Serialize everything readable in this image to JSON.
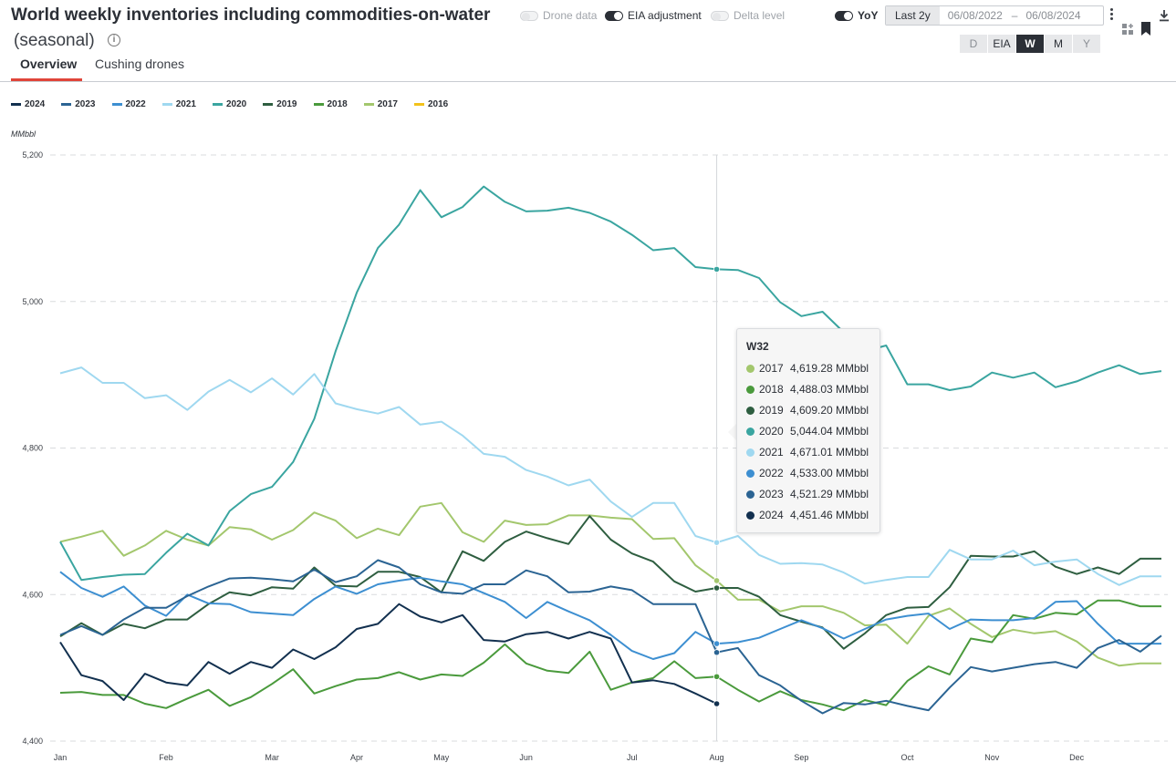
{
  "header": {
    "title": "World weekly inventories including commodities-on-water",
    "subtitle": "(seasonal)",
    "info": "i"
  },
  "tabs": [
    {
      "label": "Overview",
      "active": true
    },
    {
      "label": "Cushing drones",
      "active": false
    }
  ],
  "toggles": {
    "drone_data": {
      "label": "Drone data",
      "on": false
    },
    "eia_adjustment": {
      "label": "EIA adjustment",
      "on": true
    },
    "delta_level": {
      "label": "Delta level",
      "on": false
    },
    "yoy": {
      "label": "YoY",
      "on": true
    }
  },
  "date_range": {
    "preset": "Last 2y",
    "start": "06/08/2022",
    "end": "06/08/2024",
    "separator": "–"
  },
  "frequency": {
    "options": [
      "D",
      "EIA",
      "W",
      "M",
      "Y"
    ],
    "selected": "W"
  },
  "icons": {
    "download": "download-icon",
    "menu": "kebab-menu-icon",
    "grid": "add-widget-icon",
    "bookmark": "bookmark-icon"
  },
  "tooltip": {
    "title": "W32",
    "rows": [
      {
        "year": "2017",
        "value": "4,619.28 MMbbl",
        "color": "#a3c76d"
      },
      {
        "year": "2018",
        "value": "4,488.03 MMbbl",
        "color": "#4a9a3c"
      },
      {
        "year": "2019",
        "value": "4,609.20 MMbbl",
        "color": "#2e5e40"
      },
      {
        "year": "2020",
        "value": "5,044.04 MMbbl",
        "color": "#3aa5a0"
      },
      {
        "year": "2021",
        "value": "4,671.01 MMbbl",
        "color": "#9fd8f0"
      },
      {
        "year": "2022",
        "value": "4,533.00 MMbbl",
        "color": "#3d8fd1"
      },
      {
        "year": "2023",
        "value": "4,521.29 MMbbl",
        "color": "#2b6493"
      },
      {
        "year": "2024",
        "value": "4,451.46 MMbbl",
        "color": "#12304f"
      }
    ]
  },
  "chart_data": {
    "type": "line",
    "title": "World weekly inventories including commodities-on-water",
    "ylabel": "MMbbl",
    "xlabel": "",
    "ylim": [
      4400,
      5200
    ],
    "yticks": [
      4400,
      4600,
      4800,
      5000,
      5200
    ],
    "ytick_labels": [
      "4,400",
      "4,600",
      "4,800",
      "5,000",
      "5,200"
    ],
    "xlim": [
      1,
      53
    ],
    "month_labels": [
      "Jan",
      "Feb",
      "Mar",
      "Apr",
      "May",
      "Jun",
      "Jul",
      "Aug",
      "Sep",
      "Oct",
      "Nov",
      "Dec"
    ],
    "month_weeks": [
      1,
      6,
      11,
      15,
      19,
      23,
      28,
      32,
      36,
      41,
      45,
      49
    ],
    "crosshair_week": 32,
    "legend_position": "top-left",
    "grid": "horizontal dashed",
    "series": [
      {
        "name": "2024",
        "color": "#12304f",
        "values": [
          4535,
          4490,
          4482,
          4456,
          4492,
          4480,
          4476,
          4508,
          4492,
          4508,
          4500,
          4525,
          4512,
          4528,
          4553,
          4560,
          4587,
          4570,
          4562,
          4572,
          4538,
          4536,
          4546,
          4549,
          4540,
          4549,
          4540,
          4480,
          4483,
          4478,
          4465,
          4451
        ]
      },
      {
        "name": "2023",
        "color": "#2b6493",
        "values": [
          4545,
          4557,
          4545,
          4566,
          4582,
          4582,
          4598,
          4611,
          4622,
          4623,
          4621,
          4618,
          4634,
          4617,
          4625,
          4647,
          4637,
          4614,
          4603,
          4601,
          4614,
          4614,
          4633,
          4625,
          4603,
          4604,
          4611,
          4606,
          4587,
          4587,
          4587,
          4521,
          4527,
          4490,
          4476,
          4455,
          4438,
          4452,
          4450,
          4455,
          4448,
          4442,
          4473,
          4501,
          4495,
          4500,
          4505,
          4508,
          4500,
          4527,
          4538,
          4522,
          4544
        ]
      },
      {
        "name": "2022",
        "color": "#3d8fd1",
        "values": [
          4631,
          4609,
          4597,
          4611,
          4585,
          4571,
          4600,
          4588,
          4587,
          4576,
          4574,
          4572,
          4594,
          4611,
          4601,
          4614,
          4619,
          4623,
          4618,
          4614,
          4602,
          4590,
          4568,
          4590,
          4577,
          4565,
          4545,
          4523,
          4512,
          4520,
          4549,
          4533,
          4535,
          4541,
          4553,
          4565,
          4554,
          4540,
          4553,
          4566,
          4571,
          4574,
          4553,
          4566,
          4565,
          4565,
          4568,
          4590,
          4591,
          4560,
          4533,
          4533,
          4533
        ]
      },
      {
        "name": "2021",
        "color": "#9fd8f0",
        "values": [
          4902,
          4910,
          4889,
          4889,
          4868,
          4872,
          4852,
          4877,
          4893,
          4876,
          4895,
          4873,
          4901,
          4861,
          4853,
          4847,
          4856,
          4832,
          4836,
          4817,
          4792,
          4788,
          4770,
          4761,
          4749,
          4757,
          4727,
          4706,
          4725,
          4725,
          4680,
          4671,
          4680,
          4654,
          4642,
          4643,
          4641,
          4630,
          4615,
          4620,
          4624,
          4624,
          4661,
          4648,
          4648,
          4660,
          4640,
          4645,
          4648,
          4628,
          4613,
          4625,
          4625
        ]
      },
      {
        "name": "2020",
        "color": "#3aa5a0",
        "values": [
          4672,
          4620,
          4624,
          4627,
          4628,
          4657,
          4683,
          4667,
          4714,
          4737,
          4747,
          4781,
          4840,
          4932,
          5012,
          5073,
          5105,
          5152,
          5115,
          5129,
          5157,
          5136,
          5123,
          5124,
          5128,
          5121,
          5109,
          5091,
          5070,
          5073,
          5047,
          5044,
          5043,
          5032,
          4999,
          4980,
          4986,
          4958,
          4932,
          4940,
          4887,
          4887,
          4879,
          4884,
          4903,
          4896,
          4903,
          4883,
          4891,
          4903,
          4913,
          4901,
          4905
        ]
      },
      {
        "name": "2019",
        "color": "#2e5e40",
        "values": [
          4543,
          4561,
          4545,
          4560,
          4554,
          4566,
          4566,
          4587,
          4603,
          4599,
          4610,
          4608,
          4637,
          4612,
          4611,
          4631,
          4631,
          4624,
          4603,
          4659,
          4646,
          4672,
          4686,
          4677,
          4669,
          4707,
          4675,
          4656,
          4645,
          4618,
          4604,
          4609,
          4609,
          4597,
          4572,
          4563,
          4555,
          4526,
          4547,
          4572,
          4582,
          4583,
          4610,
          4653,
          4652,
          4652,
          4659,
          4638,
          4628,
          4637,
          4628,
          4649,
          4649
        ]
      },
      {
        "name": "2018",
        "color": "#4a9a3c",
        "values": [
          4466,
          4467,
          4463,
          4463,
          4451,
          4445,
          4458,
          4470,
          4448,
          4460,
          4478,
          4498,
          4465,
          4475,
          4484,
          4486,
          4494,
          4484,
          4491,
          4489,
          4507,
          4532,
          4506,
          4496,
          4493,
          4522,
          4470,
          4480,
          4486,
          4509,
          4486,
          4488,
          4470,
          4454,
          4468,
          4456,
          4450,
          4442,
          4456,
          4449,
          4482,
          4502,
          4491,
          4540,
          4535,
          4572,
          4567,
          4575,
          4573,
          4592,
          4592,
          4584,
          4584
        ]
      },
      {
        "name": "2017",
        "color": "#a3c76d",
        "values": [
          4672,
          4679,
          4687,
          4653,
          4667,
          4687,
          4675,
          4667,
          4692,
          4689,
          4675,
          4688,
          4712,
          4701,
          4677,
          4690,
          4681,
          4720,
          4725,
          4685,
          4672,
          4701,
          4695,
          4696,
          4708,
          4708,
          4705,
          4703,
          4676,
          4677,
          4640,
          4619,
          4593,
          4593,
          4577,
          4584,
          4584,
          4575,
          4558,
          4559,
          4533,
          4571,
          4581,
          4560,
          4542,
          4552,
          4547,
          4550,
          4536,
          4514,
          4503,
          4506,
          4506
        ]
      },
      {
        "name": "2016",
        "color": "#f2c21b",
        "values": []
      }
    ]
  }
}
